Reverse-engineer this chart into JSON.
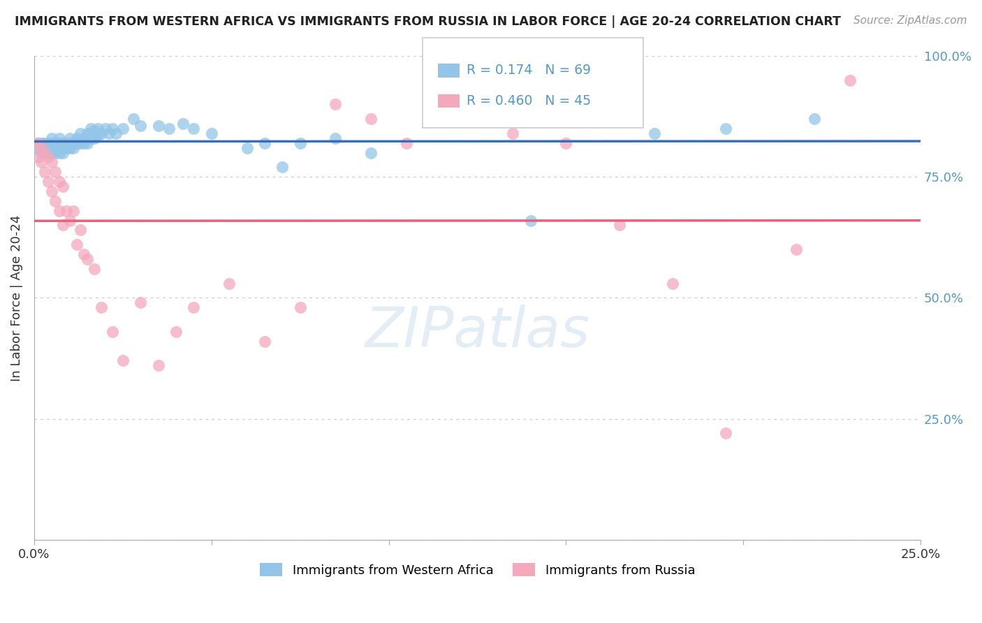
{
  "title": "IMMIGRANTS FROM WESTERN AFRICA VS IMMIGRANTS FROM RUSSIA IN LABOR FORCE | AGE 20-24 CORRELATION CHART",
  "source": "Source: ZipAtlas.com",
  "xlabel_blue": "Immigrants from Western Africa",
  "xlabel_pink": "Immigrants from Russia",
  "ylabel": "In Labor Force | Age 20-24",
  "R_blue": 0.174,
  "N_blue": 69,
  "R_pink": 0.46,
  "N_pink": 45,
  "color_blue": "#92c5e8",
  "color_pink": "#f4a8bc",
  "color_blue_line": "#3a6fb5",
  "color_pink_line": "#e8607a",
  "color_axis_labels": "#5599cc",
  "xlim": [
    0.0,
    0.25
  ],
  "ylim": [
    0.0,
    1.0
  ],
  "blue_x": [
    0.001,
    0.001,
    0.002,
    0.002,
    0.002,
    0.003,
    0.003,
    0.003,
    0.004,
    0.004,
    0.004,
    0.005,
    0.005,
    0.005,
    0.005,
    0.006,
    0.006,
    0.006,
    0.007,
    0.007,
    0.007,
    0.007,
    0.008,
    0.008,
    0.008,
    0.009,
    0.009,
    0.01,
    0.01,
    0.01,
    0.011,
    0.011,
    0.012,
    0.012,
    0.013,
    0.013,
    0.014,
    0.014,
    0.015,
    0.015,
    0.016,
    0.016,
    0.017,
    0.017,
    0.018,
    0.018,
    0.019,
    0.02,
    0.021,
    0.022,
    0.023,
    0.025,
    0.028,
    0.03,
    0.035,
    0.038,
    0.042,
    0.045,
    0.05,
    0.06,
    0.065,
    0.07,
    0.075,
    0.085,
    0.095,
    0.14,
    0.175,
    0.195,
    0.22
  ],
  "blue_y": [
    0.82,
    0.81,
    0.82,
    0.81,
    0.8,
    0.82,
    0.81,
    0.8,
    0.82,
    0.81,
    0.8,
    0.83,
    0.82,
    0.81,
    0.8,
    0.82,
    0.81,
    0.8,
    0.83,
    0.82,
    0.81,
    0.8,
    0.82,
    0.81,
    0.8,
    0.82,
    0.81,
    0.83,
    0.82,
    0.81,
    0.82,
    0.81,
    0.83,
    0.82,
    0.84,
    0.82,
    0.83,
    0.82,
    0.84,
    0.82,
    0.85,
    0.83,
    0.845,
    0.83,
    0.85,
    0.835,
    0.84,
    0.85,
    0.84,
    0.85,
    0.84,
    0.85,
    0.87,
    0.855,
    0.855,
    0.85,
    0.86,
    0.85,
    0.84,
    0.81,
    0.82,
    0.77,
    0.82,
    0.83,
    0.8,
    0.66,
    0.84,
    0.85,
    0.87
  ],
  "pink_x": [
    0.001,
    0.001,
    0.002,
    0.002,
    0.003,
    0.003,
    0.004,
    0.004,
    0.005,
    0.005,
    0.006,
    0.006,
    0.007,
    0.007,
    0.008,
    0.008,
    0.009,
    0.01,
    0.011,
    0.012,
    0.013,
    0.014,
    0.015,
    0.017,
    0.019,
    0.022,
    0.025,
    0.03,
    0.035,
    0.04,
    0.045,
    0.055,
    0.065,
    0.075,
    0.085,
    0.095,
    0.105,
    0.12,
    0.135,
    0.15,
    0.165,
    0.18,
    0.195,
    0.215,
    0.23
  ],
  "pink_y": [
    0.82,
    0.79,
    0.81,
    0.78,
    0.8,
    0.76,
    0.79,
    0.74,
    0.78,
    0.72,
    0.76,
    0.7,
    0.74,
    0.68,
    0.73,
    0.65,
    0.68,
    0.66,
    0.68,
    0.61,
    0.64,
    0.59,
    0.58,
    0.56,
    0.48,
    0.43,
    0.37,
    0.49,
    0.36,
    0.43,
    0.48,
    0.53,
    0.41,
    0.48,
    0.9,
    0.87,
    0.82,
    0.95,
    0.84,
    0.82,
    0.65,
    0.53,
    0.22,
    0.6,
    0.95
  ]
}
